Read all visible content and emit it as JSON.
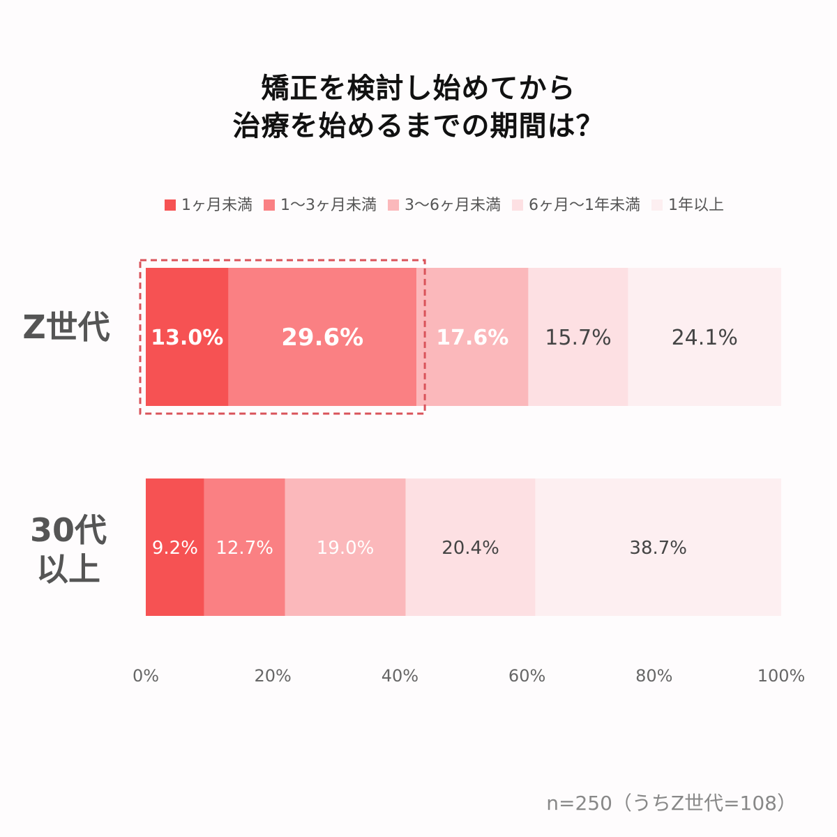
{
  "title_lines": [
    "矯正を検討し始めてから",
    "治療を始めるまでの期間は？"
  ],
  "footnote": "n=250（うちZ世代=108）",
  "colors": [
    "#f65253",
    "#fa8083",
    "#fbb8bb",
    "#fde0e3",
    "#fdeff1"
  ],
  "text_colors": [
    "#ffffff",
    "#ffffff",
    "#ffffff",
    "#444444",
    "#444444"
  ],
  "highlight_color": "#d9535a",
  "chart_data": {
    "type": "bar",
    "orientation": "horizontal",
    "stacked": true,
    "categories": [
      "Z世代",
      "30代\n以上"
    ],
    "series": [
      {
        "name": "1ヶ月未満",
        "values": [
          13.0,
          9.2
        ]
      },
      {
        "name": "1〜3ヶ月未満",
        "values": [
          29.6,
          12.7
        ]
      },
      {
        "name": "3〜6ヶ月未満",
        "values": [
          17.6,
          19.0
        ]
      },
      {
        "name": "6ヶ月〜1年未満",
        "values": [
          15.7,
          20.4
        ]
      },
      {
        "name": "1年以上",
        "values": [
          24.1,
          38.7
        ]
      }
    ],
    "data_labels": [
      [
        "13.0%",
        "29.6%",
        "17.6%",
        "15.7%",
        "24.1%"
      ],
      [
        "9.2%",
        "12.7%",
        "19.0%",
        "20.4%",
        "38.7%"
      ]
    ],
    "xlim": [
      0,
      100
    ],
    "x_ticks": [
      "0%",
      "20%",
      "40%",
      "60%",
      "80%",
      "100%"
    ],
    "highlight": {
      "category": "Z世代",
      "series_span": [
        0,
        1
      ]
    },
    "legend_position": "top",
    "grid": false
  }
}
